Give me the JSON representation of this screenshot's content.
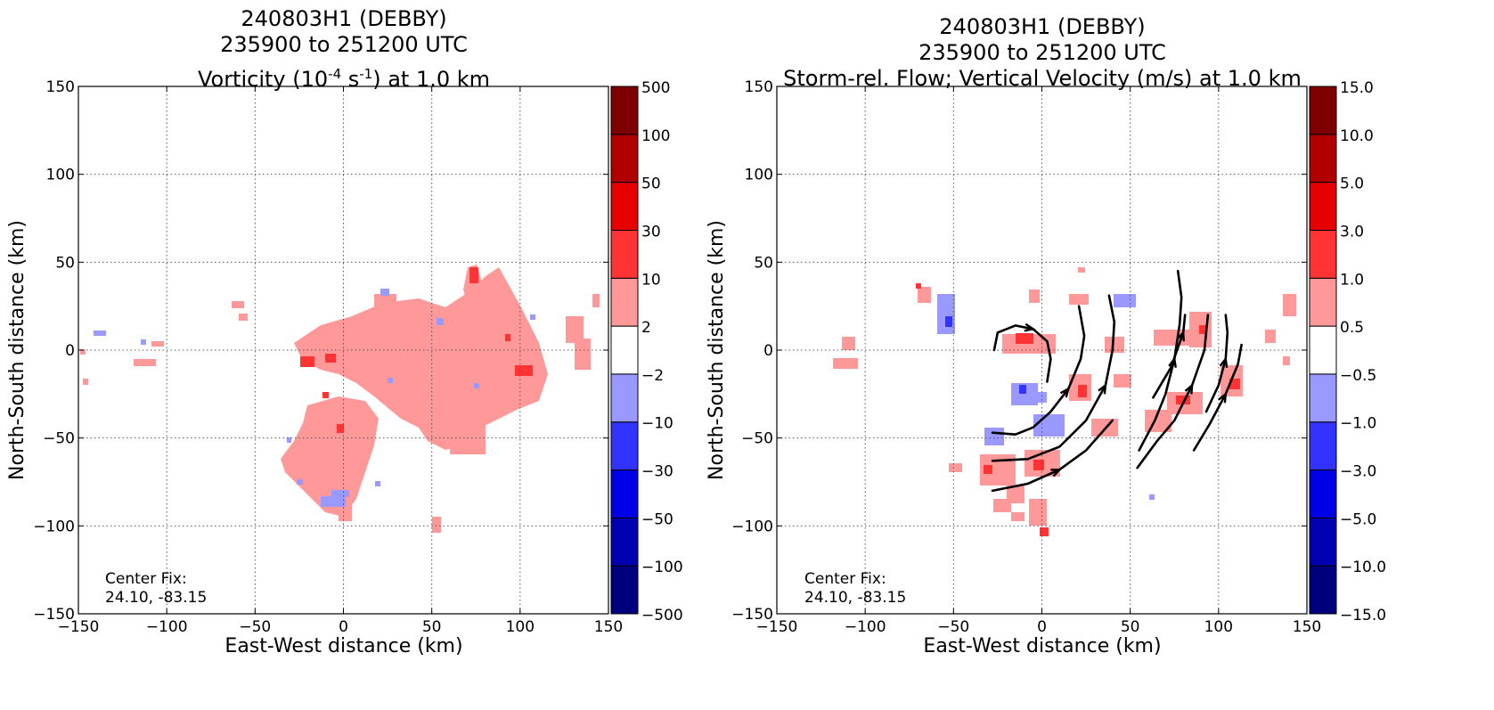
{
  "chart_data": [
    {
      "type": "heatmap",
      "title_line1": "240803H1 (DEBBY)",
      "title_line2": "235900 to 251200 UTC",
      "title_line3_pre": "Vorticity (10",
      "title_line3_exp1": "-4",
      "title_line3_mid": " s",
      "title_line3_exp2": "-1",
      "title_line3_post": ") at 1.0 km",
      "xlabel": "East-West distance (km)",
      "ylabel": "North-South distance (km)",
      "xlim": [
        -150,
        150
      ],
      "ylim": [
        -150,
        150
      ],
      "xticks": [
        "−150",
        "−100",
        "−50",
        "0",
        "50",
        "100",
        "150"
      ],
      "yticks": [
        "−150",
        "−100",
        "−50",
        "0",
        "50",
        "100",
        "150"
      ],
      "grid": true,
      "colorbar_labels": [
        "−500",
        "−100",
        "−50",
        "−30",
        "−10",
        "−2",
        "2",
        "10",
        "30",
        "50",
        "100",
        "500"
      ],
      "colorbar_colors": [
        "#00007f",
        "#0000b0",
        "#0000e6",
        "#3333ff",
        "#9999ff",
        "#ffffff",
        "#ff9999",
        "#ff3333",
        "#e60000",
        "#b00000",
        "#7f0000"
      ],
      "annotation_line1": "Center Fix:",
      "annotation_line2": "24.10, -83.15",
      "annotation_position": "bottom-left"
    },
    {
      "type": "heatmap",
      "title_line1": "240803H1 (DEBBY)",
      "title_line2": "235900 to 251200 UTC",
      "title_line3": "Storm-rel. Flow; Vertical Velocity (m/s) at 1.0 km",
      "xlabel": "East-West distance (km)",
      "ylabel": "North-South distance (km)",
      "xlim": [
        -150,
        150
      ],
      "ylim": [
        -150,
        150
      ],
      "xticks": [
        "−150",
        "−100",
        "−50",
        "0",
        "50",
        "100",
        "150"
      ],
      "yticks": [
        "−150",
        "−100",
        "−50",
        "0",
        "50",
        "100",
        "150"
      ],
      "grid": true,
      "colorbar_labels": [
        "−15.0",
        "−10.0",
        "−5.0",
        "−3.0",
        "−1.0",
        "−0.5",
        "0.5",
        "1.0",
        "3.0",
        "5.0",
        "10.0",
        "15.0"
      ],
      "colorbar_colors": [
        "#00007f",
        "#0000b0",
        "#0000e6",
        "#3333ff",
        "#9999ff",
        "#ffffff",
        "#ff9999",
        "#ff3333",
        "#e60000",
        "#b00000",
        "#7f0000"
      ],
      "annotation_line1": "Center Fix:",
      "annotation_line2": "24.10, -83.15",
      "annotation_position": "bottom-left",
      "streamlines": [
        [
          [
            -27,
            0
          ],
          [
            -25,
            10
          ],
          [
            -15,
            14
          ],
          [
            -5,
            12
          ],
          [
            3,
            5
          ],
          [
            5,
            -5
          ],
          [
            3,
            -18
          ]
        ],
        [
          [
            -28,
            -47
          ],
          [
            -15,
            -48
          ],
          [
            -5,
            -44
          ],
          [
            5,
            -35
          ],
          [
            15,
            -22
          ],
          [
            22,
            -5
          ],
          [
            24,
            8
          ],
          [
            21,
            25
          ]
        ],
        [
          [
            -28,
            -63
          ],
          [
            -8,
            -62
          ],
          [
            10,
            -55
          ],
          [
            25,
            -40
          ],
          [
            36,
            -20
          ],
          [
            40,
            0
          ],
          [
            41,
            16
          ],
          [
            38,
            31
          ]
        ],
        [
          [
            -28,
            -80
          ],
          [
            -8,
            -76
          ],
          [
            10,
            -68
          ],
          [
            25,
            -57
          ],
          [
            40,
            -40
          ]
        ],
        [
          [
            55,
            -57
          ],
          [
            64,
            -40
          ],
          [
            70,
            -25
          ],
          [
            75,
            -5
          ],
          [
            78,
            15
          ],
          [
            79,
            30
          ],
          [
            77,
            45
          ]
        ],
        [
          [
            63,
            -27
          ],
          [
            73,
            -10
          ],
          [
            80,
            10
          ],
          [
            81,
            20
          ]
        ],
        [
          [
            54,
            -67
          ],
          [
            65,
            -52
          ],
          [
            75,
            -40
          ],
          [
            85,
            -20
          ],
          [
            92,
            0
          ],
          [
            94,
            20
          ]
        ],
        [
          [
            93,
            -35
          ],
          [
            100,
            -20
          ],
          [
            104,
            -5
          ],
          [
            105,
            10
          ],
          [
            104,
            20
          ]
        ],
        [
          [
            86,
            -57
          ],
          [
            95,
            -42
          ],
          [
            104,
            -25
          ],
          [
            111,
            -8
          ],
          [
            113,
            3
          ]
        ]
      ]
    }
  ]
}
